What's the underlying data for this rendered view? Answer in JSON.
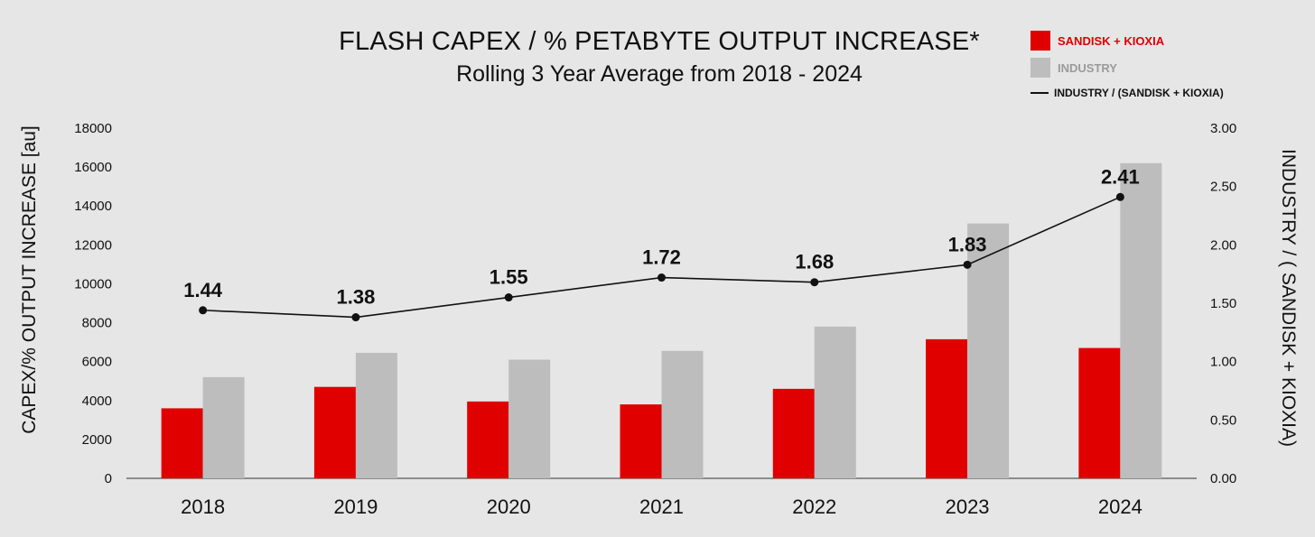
{
  "colors": {
    "sandisk": "#e00000",
    "industry": "#bdbdbd",
    "ratio_line": "#111111",
    "background": "#e6e6e6"
  },
  "chart_data": {
    "type": "bar",
    "title": "FLASH CAPEX / % PETABYTE OUTPUT INCREASE*",
    "subtitle": "Rolling 3 Year Average from 2018 - 2024",
    "ylabel": "CAPEX/% OUTPUT INCREASE [au]",
    "y2label": "INDUSTRY  /  ( SANDISK + KIOXIA)",
    "categories": [
      "2018",
      "2019",
      "2020",
      "2021",
      "2022",
      "2023",
      "2024"
    ],
    "ylim": [
      0,
      18000
    ],
    "yticks": [
      "0",
      "2000",
      "4000",
      "6000",
      "8000",
      "10000",
      "12000",
      "14000",
      "16000",
      "18000"
    ],
    "y2lim": [
      0,
      3.0
    ],
    "y2ticks": [
      "0.00",
      "0.50",
      "1.00",
      "1.50",
      "2.00",
      "2.50",
      "3.00"
    ],
    "series": [
      {
        "name": "SANDISK + KIOXIA",
        "type": "bar",
        "color": "#e00000",
        "values": [
          3600,
          4700,
          3950,
          3800,
          4600,
          7150,
          6700
        ]
      },
      {
        "name": "INDUSTRY",
        "type": "bar",
        "color": "#bdbdbd",
        "values": [
          5200,
          6450,
          6100,
          6550,
          7800,
          13100,
          16200
        ]
      },
      {
        "name": "INDUSTRY / (SANDISK + KIOXIA)",
        "type": "line",
        "axis": "right",
        "color": "#111111",
        "values": [
          1.44,
          1.38,
          1.55,
          1.72,
          1.68,
          1.83,
          2.41
        ],
        "labels": [
          "1.44",
          "1.38",
          "1.55",
          "1.72",
          "1.68",
          "1.83",
          "2.41"
        ]
      }
    ],
    "grid": false,
    "legend": "top-right"
  }
}
